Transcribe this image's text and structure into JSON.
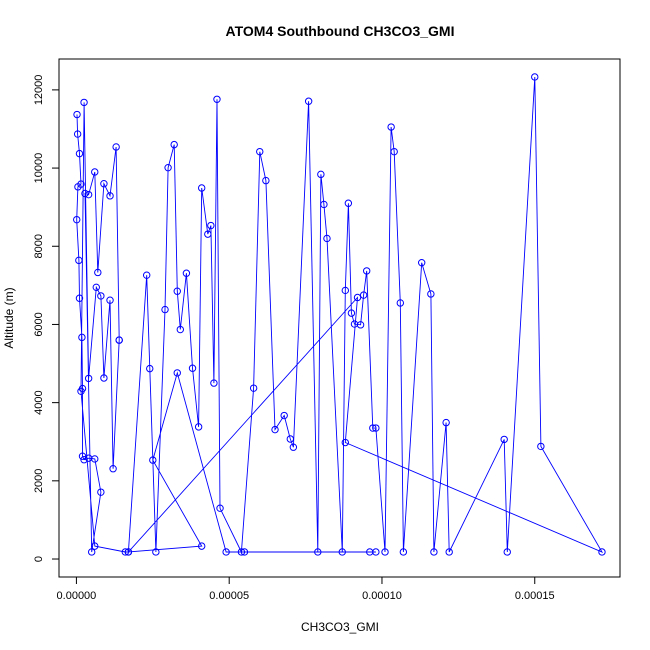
{
  "chart_data": {
    "type": "line",
    "title": "ATOM4 Southbound CH3CO3_GMI",
    "xlabel": "CH3CO3_GMI",
    "ylabel": "Altitude (m)",
    "xlim": [
      -5.7e-06,
      0.0001779
    ],
    "ylim": [
      -460,
      12790
    ],
    "x_ticks": [
      0,
      5e-05,
      0.0001,
      0.00015
    ],
    "x_tick_labels": [
      "0.00000",
      "0.00005",
      "0.00010",
      "0.00015"
    ],
    "y_ticks": [
      0,
      2000,
      4000,
      6000,
      8000,
      10000,
      12000
    ],
    "y_tick_labels": [
      "0",
      "2000",
      "4000",
      "6000",
      "8000",
      "10000",
      "12000"
    ],
    "series_color": "#0000ff",
    "marker": "open-circle",
    "grid": false,
    "series": [
      {
        "x": [
          2e-07,
          4e-07,
          1e-06,
          1.5e-06,
          5e-07,
          1e-07,
          8e-07,
          1e-06,
          1.8e-06,
          2e-06,
          2e-06,
          2.5e-06,
          4e-06,
          6e-06,
          8e-06,
          5e-06,
          2.8e-06,
          4e-06,
          6e-06,
          7e-06,
          9e-06,
          1.1e-05,
          1.3e-05,
          1.4e-05,
          1.4e-05,
          1.2e-05,
          1.1e-05,
          9e-06,
          8e-06,
          6.5e-06,
          4e-06,
          2.5e-06,
          1.5e-06,
          6e-06,
          1.6e-05,
          1.7e-05,
          2.3e-05,
          2.4e-05,
          2.6e-05,
          2.9e-05,
          3e-05,
          3.2e-05,
          3.3e-05,
          3.4e-05,
          3.6e-05,
          3.8e-05,
          4e-05,
          4.1e-05,
          4.3e-05,
          4.4e-05,
          4.5e-05,
          4.6e-05,
          4.7e-05,
          5.4e-05,
          5.8e-05,
          6e-05,
          6.2e-05,
          6.5e-05,
          6.8e-05,
          7e-05,
          7.1e-05,
          7.6e-05,
          7.9e-05,
          8e-05,
          8.1e-05,
          8.2e-05,
          8.7e-05,
          8.8e-05,
          8.9e-05,
          9e-05,
          9.1e-05,
          9.3e-05,
          9.4e-05,
          9.5e-05,
          9.7e-05,
          9.8e-05,
          0.000101,
          0.000103,
          0.000104,
          0.000106,
          0.000107,
          0.000113,
          0.000116,
          0.000117,
          0.000121,
          0.000122,
          0.00014,
          0.000141,
          0.00015,
          0.000152,
          0.000172,
          8.8e-05,
          9.2e-05,
          1.7e-05,
          4.1e-05,
          2.5e-05,
          3.3e-05,
          4.9e-05,
          5.5e-05,
          9.8e-05,
          9.6e-05
        ],
        "y": [
          11370,
          10870,
          10370,
          9590,
          9520,
          8680,
          7640,
          6670,
          5670,
          4360,
          2630,
          2540,
          2580,
          2560,
          1710,
          180,
          9350,
          9320,
          9900,
          7330,
          9600,
          9290,
          10540,
          5600,
          5600,
          2310,
          6620,
          4630,
          6730,
          6950,
          4620,
          11680,
          4290,
          330,
          180,
          180,
          7260,
          4870,
          180,
          6380,
          10010,
          10600,
          6850,
          5870,
          7310,
          4880,
          3380,
          9490,
          8310,
          8530,
          4500,
          11760,
          1300,
          180,
          4370,
          10420,
          9680,
          3310,
          3670,
          3070,
          2860,
          11710,
          180,
          9840,
          9070,
          8200,
          180,
          6870,
          9100,
          6290,
          6010,
          5990,
          6750,
          7370,
          3350,
          3350,
          180,
          11050,
          10420,
          6550,
          180,
          7580,
          6780,
          180,
          3490,
          180,
          3060,
          180,
          12330,
          2880,
          180,
          2980,
          6690,
          180,
          330,
          2530,
          4760,
          180,
          180,
          180,
          180
        ]
      }
    ]
  }
}
